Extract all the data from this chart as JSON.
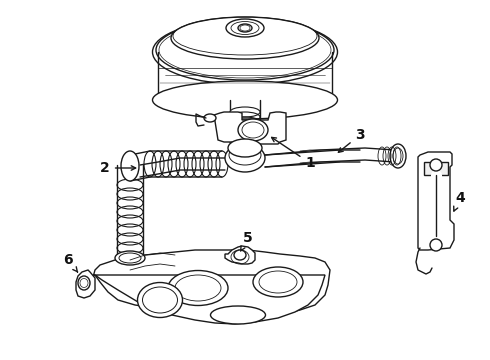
{
  "background": "#ffffff",
  "line_color": "#1a1a1a",
  "label_color": "#111111",
  "lw": 1.0,
  "fontsize": 10,
  "fig_w": 4.9,
  "fig_h": 3.6,
  "dpi": 100
}
